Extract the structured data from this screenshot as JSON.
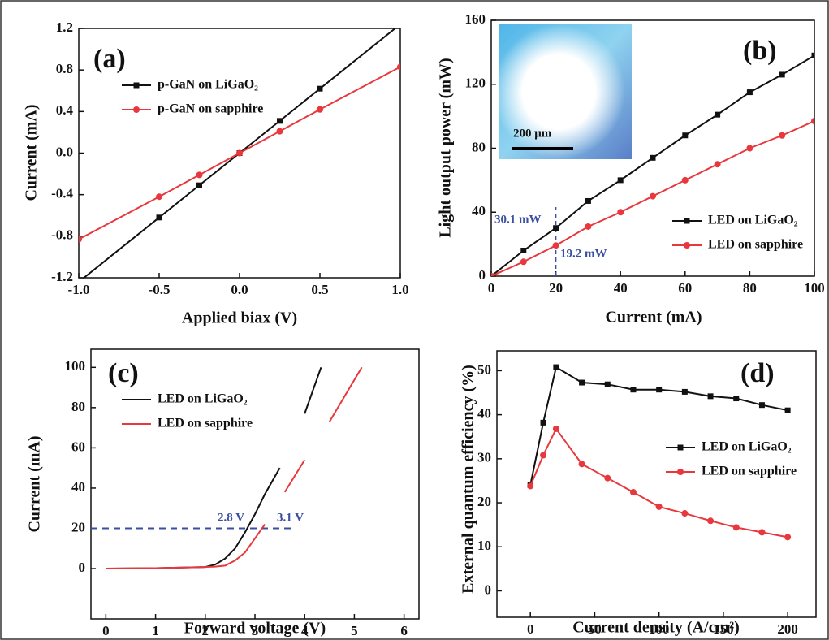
{
  "chart_data": [
    {
      "type": "line",
      "label": "(a)",
      "xlabel": "Applied biax (V)",
      "ylabel": "Current (mA)",
      "x": [
        -1,
        -0.5,
        -0.25,
        0,
        0.25,
        0.5,
        1
      ],
      "series": [
        {
          "name": "p-GaN on LiGaO₂",
          "color": "#111111",
          "marker": "square",
          "values": [
            -1.24,
            -0.62,
            -0.31,
            0,
            0.31,
            0.62,
            1.24
          ]
        },
        {
          "name": "p-GaN on sapphire",
          "color": "#e8383d",
          "marker": "circle",
          "values": [
            -0.83,
            -0.42,
            -0.21,
            0,
            0.21,
            0.42,
            0.83
          ]
        }
      ],
      "xlim": [
        -1,
        1
      ],
      "ylim": [
        -1.2,
        1.2
      ],
      "xticks": [
        {
          "value": -1,
          "label": "-1.0"
        },
        -0.5,
        {
          "value": 0,
          "label": "0.0"
        },
        0.5,
        {
          "value": 1,
          "label": "1.0"
        }
      ],
      "yticks": [
        -1.2,
        -0.8,
        -0.4,
        {
          "value": 0,
          "label": "0.0"
        },
        0.4,
        0.8,
        1.2
      ],
      "legend": "upper left",
      "grid": false
    },
    {
      "type": "line",
      "label": "(b)",
      "xlabel": "Current (mA)",
      "ylabel": "Light output power (mW)",
      "x": [
        0,
        10,
        20,
        30,
        40,
        50,
        60,
        70,
        80,
        90,
        100
      ],
      "series": [
        {
          "name": "LED on LiGaO₂",
          "color": "#111111",
          "marker": "square",
          "values": [
            0,
            16,
            30.1,
            47,
            60,
            74,
            88,
            101,
            115,
            126,
            138
          ]
        },
        {
          "name": "LED on sapphire",
          "color": "#e8383d",
          "marker": "circle",
          "values": [
            0,
            9,
            19.2,
            31,
            40,
            50,
            60,
            70,
            80,
            88,
            97
          ]
        }
      ],
      "xlim": [
        0,
        100
      ],
      "ylim": [
        0,
        160
      ],
      "xticks": [
        0,
        20,
        40,
        60,
        80,
        100
      ],
      "yticks": [
        0,
        40,
        80,
        120,
        160
      ],
      "annotations": [
        "30.1 mW",
        "19.2 mW",
        "200 μm"
      ],
      "vline": 20,
      "legend": "lower right",
      "grid": false
    },
    {
      "type": "line",
      "label": "(c)",
      "xlabel": "Forward voltage (V)",
      "ylabel": "Current (mA)",
      "x": [
        0,
        1,
        2,
        2.2,
        2.4,
        2.6,
        2.8,
        3,
        3.2,
        3.5,
        3.6,
        4,
        4.33,
        4.5,
        5.15
      ],
      "series": [
        {
          "name": "LED on LiGaO₂",
          "color": "#111111",
          "marker": "none",
          "values": [
            0,
            0.2,
            0.8,
            2,
            5,
            10,
            18,
            27,
            37,
            50,
            null,
            77,
            100,
            null,
            null
          ]
        },
        {
          "name": "LED on sapphire",
          "color": "#e8383d",
          "marker": "none",
          "values": [
            0,
            0.2,
            0.8,
            1,
            1.5,
            4,
            8,
            15,
            22,
            null,
            38,
            54,
            null,
            73,
            100
          ]
        }
      ],
      "xlim": [
        -0.3,
        6.3
      ],
      "ylim": [
        -25,
        109
      ],
      "xticks": [
        0,
        1,
        2,
        3,
        4,
        5,
        6
      ],
      "yticks": [
        0,
        20,
        40,
        60,
        80,
        100
      ],
      "annotations": [
        "2.8 V",
        "3.1 V"
      ],
      "hline": 20,
      "legend": "upper left",
      "grid": false
    },
    {
      "type": "line",
      "label": "(d)",
      "xlabel": "Current density (A/cm²)",
      "ylabel": "External quantum efficiency (%)",
      "x": [
        0,
        10,
        20,
        40,
        60,
        80,
        100,
        120,
        140,
        160,
        180,
        200
      ],
      "series": [
        {
          "name": "LED on LiGaO₂",
          "color": "#111111",
          "marker": "square",
          "values": [
            24,
            38.2,
            50.8,
            47.3,
            46.9,
            45.7,
            45.7,
            45.2,
            44.2,
            43.7,
            42.2,
            41
          ]
        },
        {
          "name": "LED on sapphire",
          "color": "#e8383d",
          "marker": "circle",
          "values": [
            23.8,
            30.8,
            36.8,
            28.8,
            25.6,
            22.4,
            19.1,
            17.6,
            15.9,
            14.4,
            13.3,
            12.2
          ]
        }
      ],
      "xlim": [
        -26,
        222
      ],
      "ylim": [
        -6,
        54.5
      ],
      "xticks": [
        0,
        50,
        100,
        150,
        200
      ],
      "yticks": [
        0,
        10,
        20,
        30,
        40,
        50
      ],
      "legend": "center right",
      "grid": false
    }
  ]
}
